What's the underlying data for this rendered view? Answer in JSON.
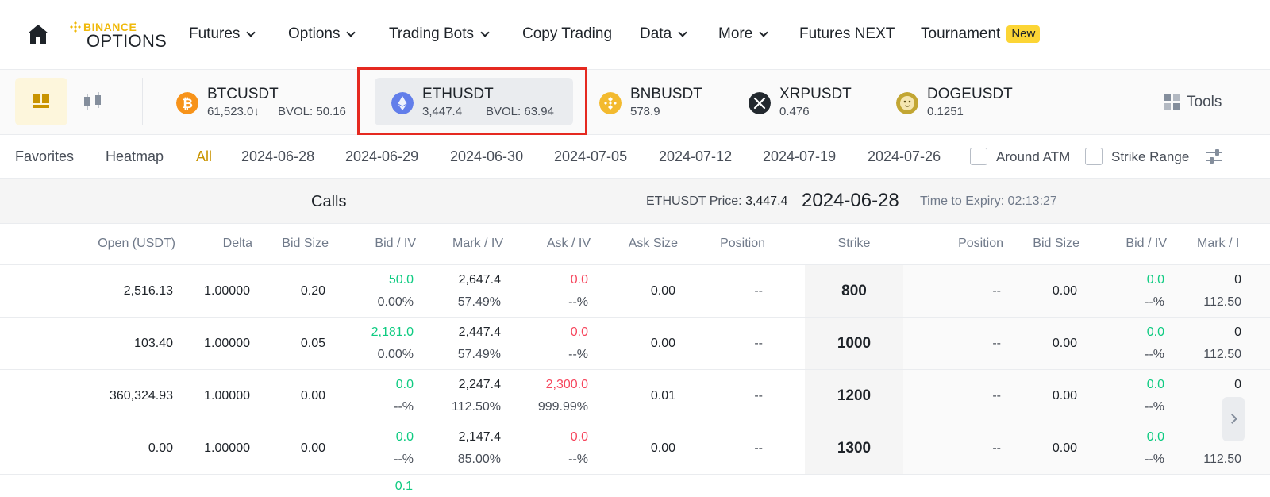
{
  "nav": {
    "logo_top": "BINANCE",
    "logo_bottom": "OPTIONS",
    "items": [
      {
        "label": "Futures",
        "dropdown": true
      },
      {
        "label": "Options",
        "dropdown": true
      },
      {
        "label": "Trading Bots",
        "dropdown": true
      },
      {
        "label": "Copy Trading",
        "dropdown": false
      },
      {
        "label": "Data",
        "dropdown": true
      },
      {
        "label": "More",
        "dropdown": true
      },
      {
        "label": "Futures NEXT",
        "dropdown": false
      },
      {
        "label": "Tournament",
        "dropdown": false
      }
    ],
    "new_badge": "New"
  },
  "pairs": [
    {
      "symbol": "BTCUSDT",
      "price": "61,523.0",
      "arrow": "↓",
      "bvol": "BVOL: 50.16",
      "coin_color": "#f7931a"
    },
    {
      "symbol": "ETHUSDT",
      "price": "3,447.4",
      "bvol": "BVOL: 63.94",
      "coin_color": "#627eea",
      "selected": true
    },
    {
      "symbol": "BNBUSDT",
      "price": "578.9",
      "coin_color": "#f3ba2f"
    },
    {
      "symbol": "XRPUSDT",
      "price": "0.476",
      "coin_color": "#23292f"
    },
    {
      "symbol": "DOGEUSDT",
      "price": "0.1251",
      "coin_color": "#c2a633"
    }
  ],
  "tools_label": "Tools",
  "filters": {
    "favorites": "Favorites",
    "heatmap": "Heatmap",
    "all": "All",
    "dates": [
      "2024-06-28",
      "2024-06-29",
      "2024-06-30",
      "2024-07-05",
      "2024-07-12",
      "2024-07-19",
      "2024-07-26"
    ],
    "around_atm": "Around ATM",
    "strike_range": "Strike Range"
  },
  "info": {
    "calls": "Calls",
    "price_label": "ETHUSDT Price:",
    "price_value": "3,447.4",
    "expiry": "2024-06-28",
    "time_to_expiry": "Time to Expiry: 02:13:27"
  },
  "columns": {
    "open": "Open (USDT)",
    "delta": "Delta",
    "bid_size": "Bid Size",
    "bid_iv": "Bid / IV",
    "mark_iv": "Mark / IV",
    "ask_iv": "Ask / IV",
    "ask_size": "Ask Size",
    "position": "Position",
    "strike": "Strike",
    "put_position": "Position",
    "put_bid_size": "Bid Size",
    "put_bid_iv": "Bid / IV",
    "put_mark_iv": "Mark / I"
  },
  "rows": [
    {
      "open": "2,516.13",
      "delta": "1.00000",
      "bid_size": "0.20",
      "bid": "50.0",
      "bid_iv": "0.00%",
      "mark": "2,647.4",
      "mark_iv": "57.49%",
      "ask": "0.0",
      "ask_iv": "--%",
      "ask_size": "0.00",
      "position": "--",
      "strike": "800",
      "p_position": "--",
      "p_bid_size": "0.00",
      "p_bid": "0.0",
      "p_bid_iv": "--%",
      "p_mark": "0",
      "p_mark_iv": "112.50"
    },
    {
      "open": "103.40",
      "delta": "1.00000",
      "bid_size": "0.05",
      "bid": "2,181.0",
      "bid_iv": "0.00%",
      "mark": "2,447.4",
      "mark_iv": "57.49%",
      "ask": "0.0",
      "ask_iv": "--%",
      "ask_size": "0.00",
      "position": "--",
      "strike": "1000",
      "p_position": "--",
      "p_bid_size": "0.00",
      "p_bid": "0.0",
      "p_bid_iv": "--%",
      "p_mark": "0",
      "p_mark_iv": "112.50"
    },
    {
      "open": "360,324.93",
      "delta": "1.00000",
      "bid_size": "0.00",
      "bid": "0.0",
      "bid_iv": "--%",
      "mark": "2,247.4",
      "mark_iv": "112.50%",
      "ask": "2,300.0",
      "ask_iv": "999.99%",
      "ask_size": "0.01",
      "position": "--",
      "strike": "1200",
      "p_position": "--",
      "p_bid_size": "0.00",
      "p_bid": "0.0",
      "p_bid_iv": "--%",
      "p_mark": "0",
      "p_mark_iv": "112"
    },
    {
      "open": "0.00",
      "delta": "1.00000",
      "bid_size": "0.00",
      "bid": "0.0",
      "bid_iv": "--%",
      "mark": "2,147.4",
      "mark_iv": "85.00%",
      "ask": "0.0",
      "ask_iv": "--%",
      "ask_size": "0.00",
      "position": "--",
      "strike": "1300",
      "p_position": "--",
      "p_bid_size": "0.00",
      "p_bid": "0.0",
      "p_bid_iv": "--%",
      "p_mark": "0",
      "p_mark_iv": "112.50"
    }
  ],
  "colors": {
    "accent": "#f0b90b",
    "up": "#0ecb81",
    "down": "#f6465d",
    "highlight": "#e52920"
  }
}
